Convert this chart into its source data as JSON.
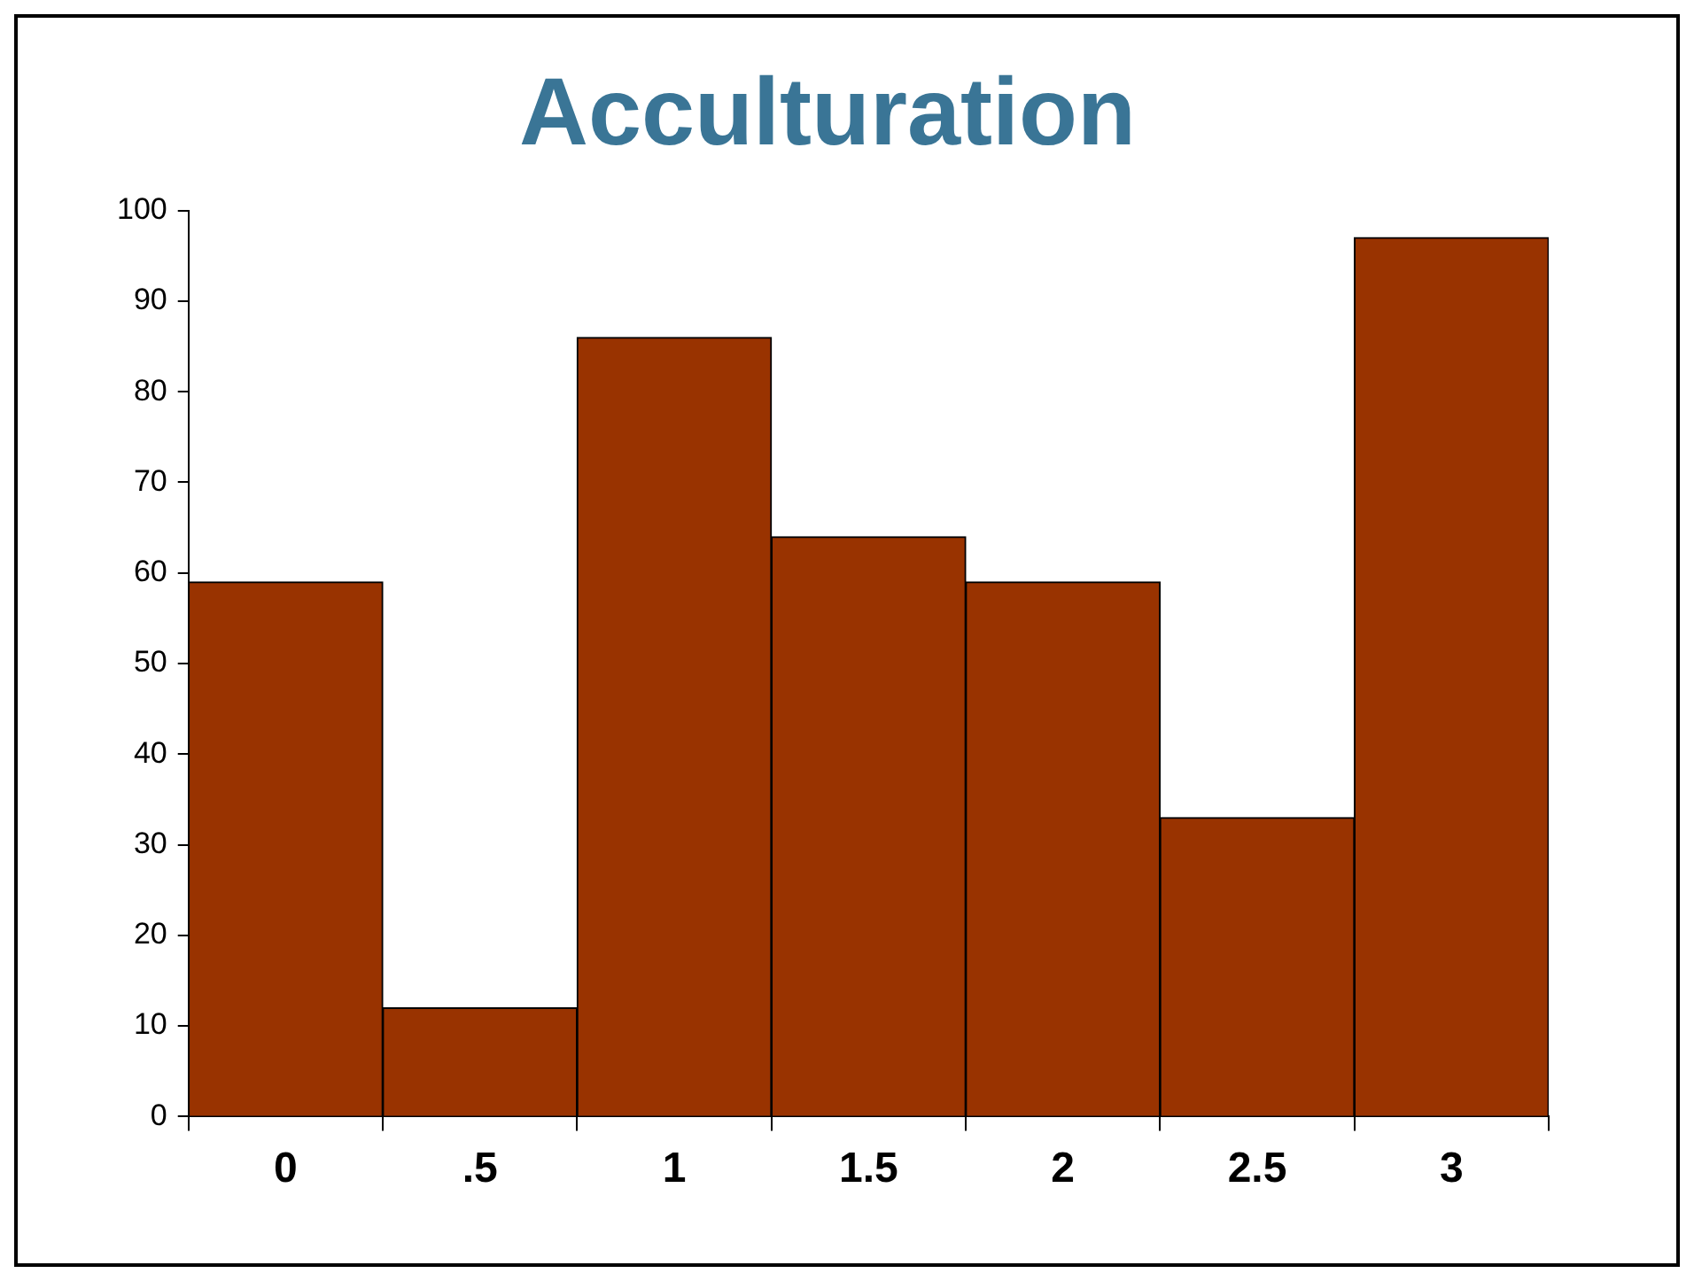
{
  "chart_data": {
    "type": "bar",
    "title": "Acculturation",
    "categories": [
      "0",
      ".5",
      "1",
      "1.5",
      "2",
      "2.5",
      "3"
    ],
    "values": [
      59,
      12,
      86,
      64,
      59,
      33,
      97
    ],
    "color": "#993300",
    "ylim": [
      0,
      100
    ],
    "yticks": [
      0,
      10,
      20,
      30,
      40,
      50,
      60,
      70,
      80,
      90,
      100
    ],
    "grid": false,
    "legend": false
  }
}
